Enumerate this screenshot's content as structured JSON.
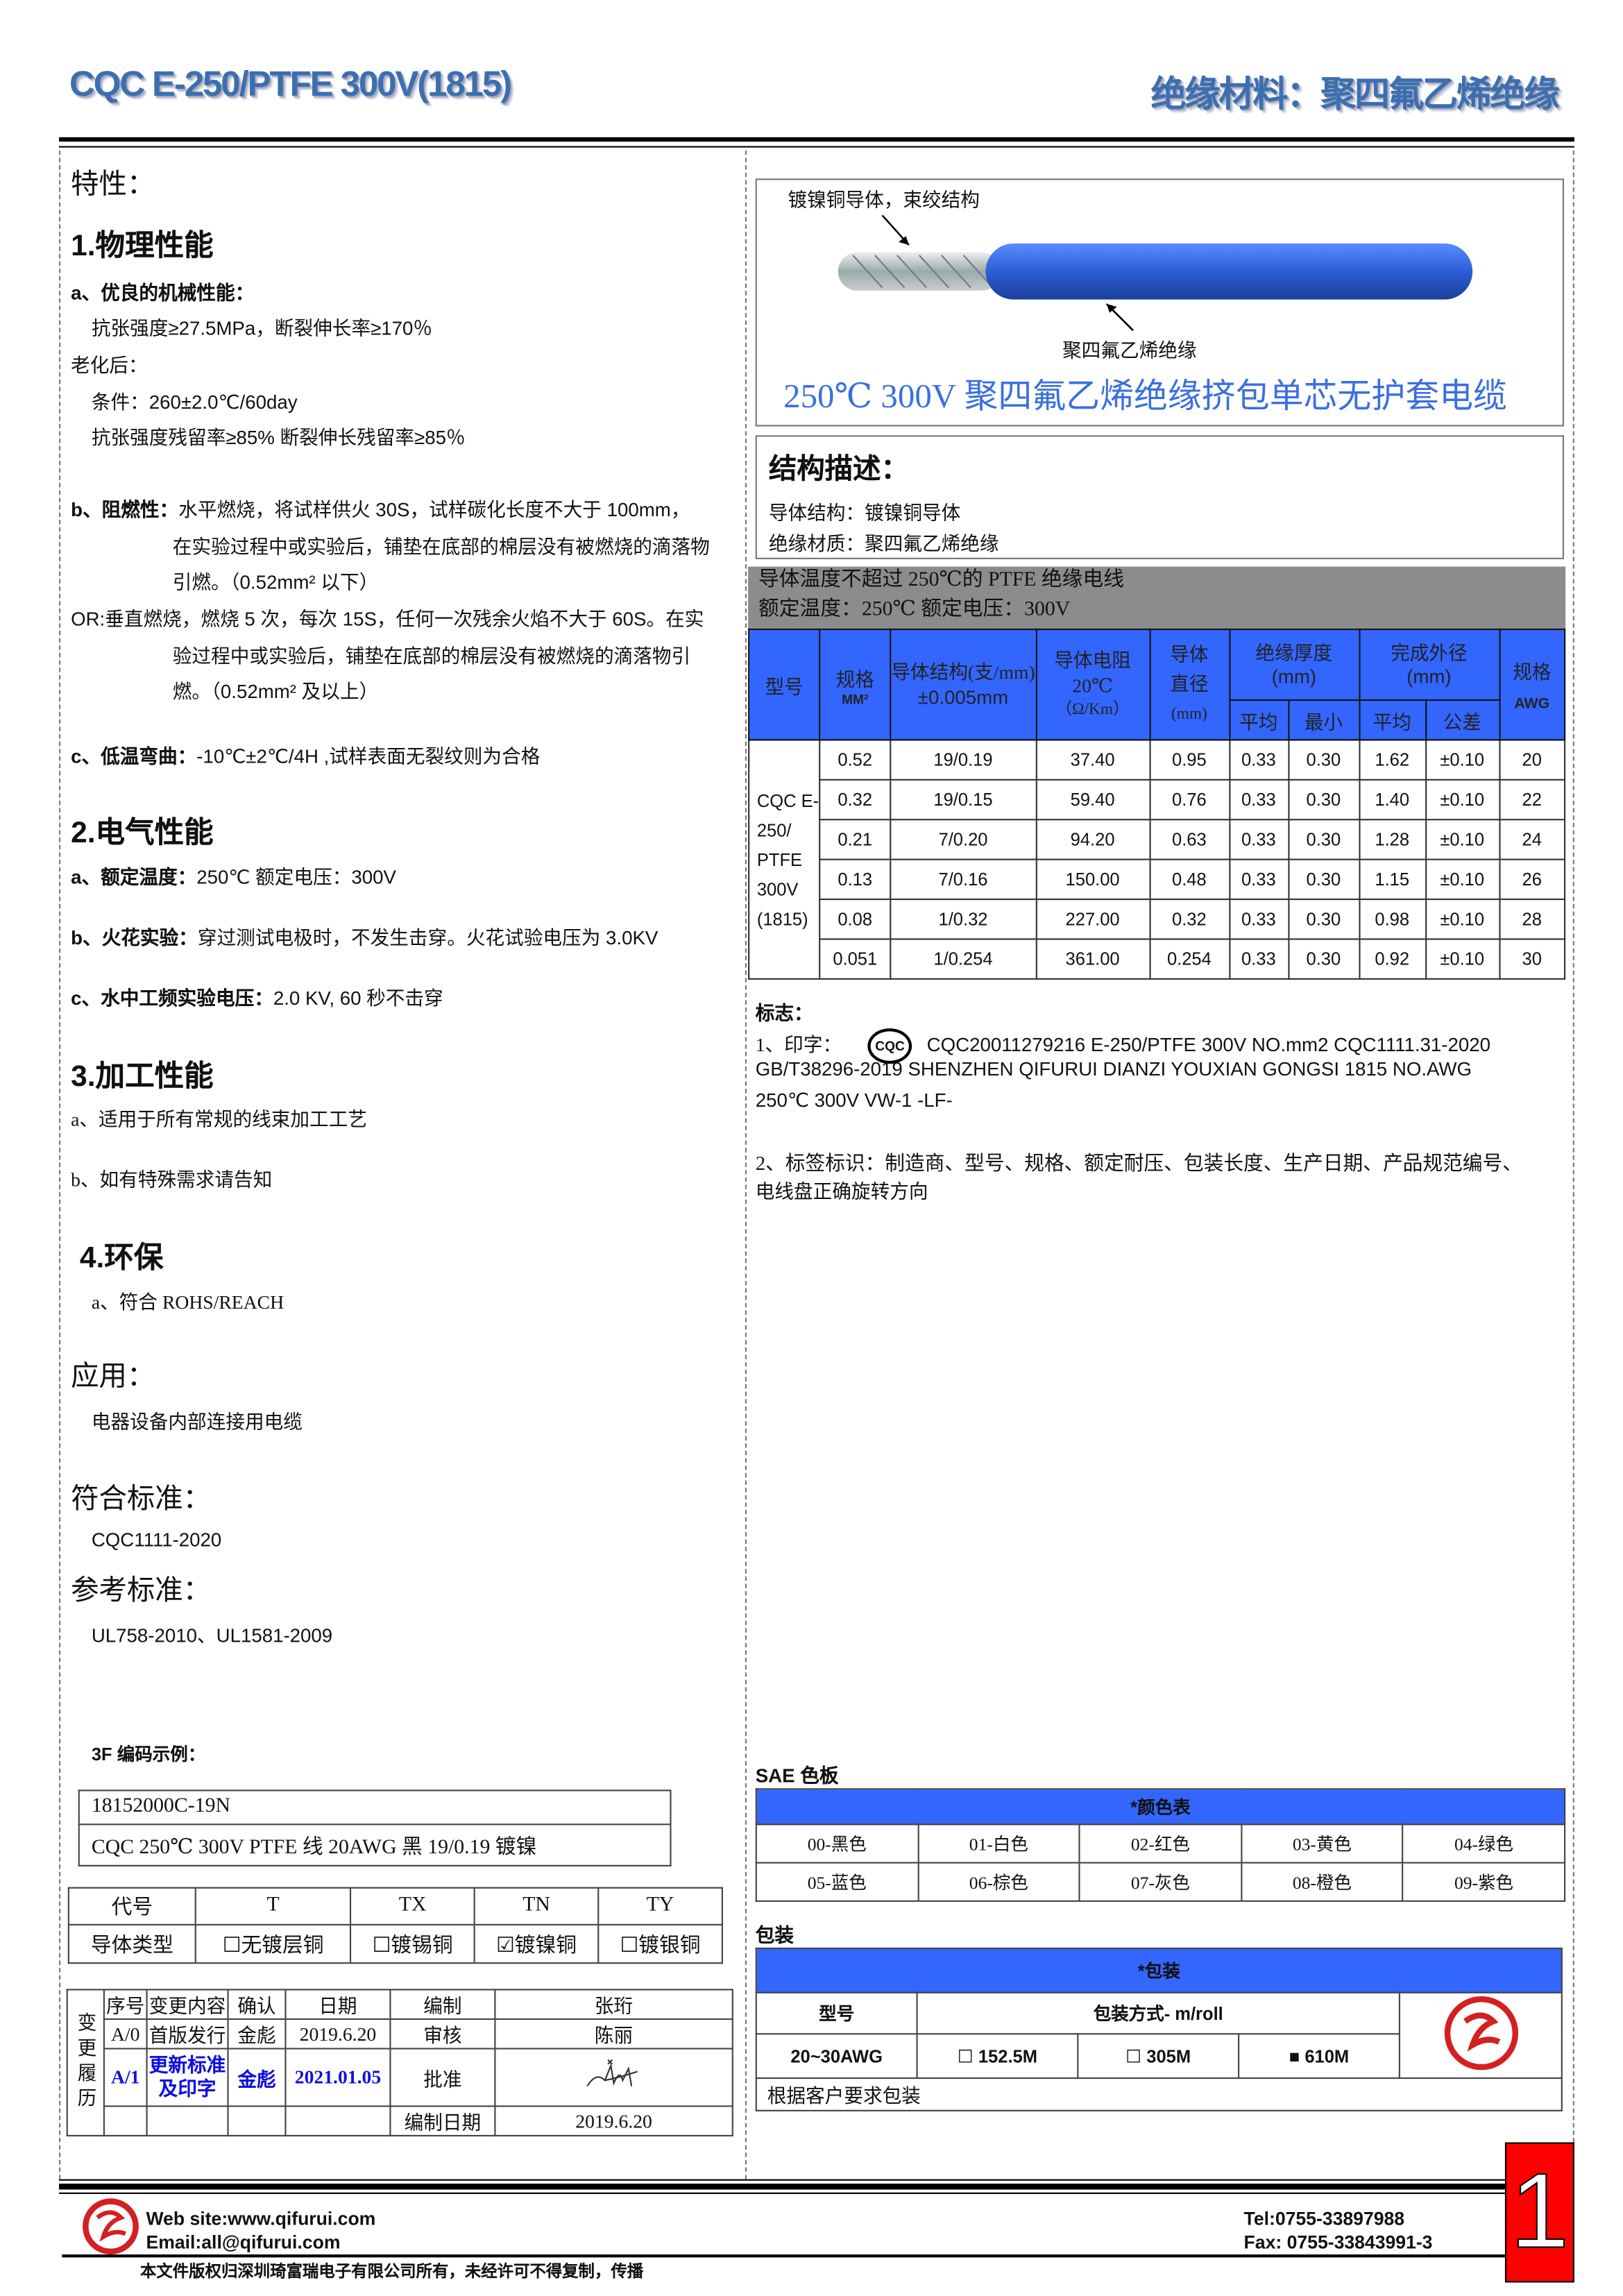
{
  "header": {
    "title_left": "CQC E-250/PTFE 300V(1815)",
    "title_right": "绝缘材料：聚四氟乙烯绝缘"
  },
  "left": {
    "features_title": "特性：",
    "physical": {
      "title": "1.物理性能",
      "a_title": "a、优良的机械性能：",
      "a1": "抗张强度≥27.5MPa，断裂伸长率≥170％",
      "aging": "老化后：",
      "cond": "条件：260±2.0℃/60day",
      "retain": "抗张强度残留率≥85%  断裂伸长残留率≥85％",
      "b_label": "b、阻燃性：",
      "b1": "水平燃烧，将试样供火 30S，试样碳化长度不大于 100mm，",
      "b2": "在实验过程中或实验后，铺垫在底部的棉层没有被燃烧的滴落物",
      "b3": "引燃。（0.52mm² 以下）",
      "or1": "OR:垂直燃烧，燃烧 5 次，每次 15S，任何一次残余火焰不大于 60S。在实",
      "or2": "验过程中或实验后，铺垫在底部的棉层没有被燃烧的滴落物引",
      "or3": "燃。（0.52mm² 及以上）",
      "c_label": "c、低温弯曲：",
      "c1": "-10℃±2℃/4H ,试样表面无裂纹则为合格"
    },
    "electrical": {
      "title": "2.电气性能",
      "a_label": "a、额定温度：",
      "a1": "250℃    额定电压：300V",
      "b_label": "b、火花实验：",
      "b1": "穿过测试电极时，不发生击穿。火花试验电压为 3.0KV",
      "c_label": "c、水中工频实验电压：",
      "c1": "2.0 KV, 60 秒不击穿"
    },
    "processing": {
      "title": "3.加工性能",
      "a": "a、适用于所有常规的线束加工工艺",
      "b": "b、如有特殊需求请告知"
    },
    "env": {
      "title": "4.环保",
      "a": "a、符合 ROHS/REACH"
    },
    "application": {
      "title": "应用：",
      "text": "电器设备内部连接用电缆"
    },
    "standard": {
      "title": "符合标准：",
      "text": "CQC1111-2020"
    },
    "reference": {
      "title": "参考标准：",
      "text": "UL758-2010、UL1581-2009"
    },
    "code_example": {
      "title": "3F 编码示例：",
      "line1": "18152000C-19N",
      "line2": "CQC 250℃  300V PTFE 线  20AWG  黑  19/0.19 镀镍"
    },
    "code_table": {
      "row1": [
        "代号",
        "T",
        "TX",
        "TN",
        "TY"
      ],
      "row2_label": "导体类型",
      "options": [
        {
          "label": "无镀层铜",
          "checked": false
        },
        {
          "label": "镀锡铜",
          "checked": false
        },
        {
          "label": "镀镍铜",
          "checked": true
        },
        {
          "label": "镀银铜",
          "checked": false
        }
      ]
    },
    "history": {
      "side_label": "变更履历",
      "headers": [
        "序号",
        "变更内容",
        "确认",
        "日期",
        "编制",
        "张珩"
      ],
      "row1": [
        "A/0",
        "首版发行",
        "金彪",
        "2019.6.20",
        "审核",
        "陈丽"
      ],
      "row2": [
        "A/1",
        "更新标准及印字",
        "金彪",
        "2021.01.05",
        "批准"
      ],
      "row3": [
        "编制日期",
        "2019.6.20"
      ],
      "signature": "签名"
    }
  },
  "right": {
    "cable": {
      "label_conductor": "镀镍铜导体，束绞结构",
      "label_insulation": "聚四氟乙烯绝缘",
      "title": "250℃  300V 聚四氟乙烯绝缘挤包单芯无护套电缆",
      "color": "#2c5fd6"
    },
    "structure": {
      "title": "结构描述：",
      "conductor": "导体结构：镀镍铜导体",
      "insulation": "绝缘材质：聚四氟乙烯绝缘"
    },
    "band": {
      "line1": "导体温度不超过 250℃的 PTFE 绝缘电线",
      "line2": "额定温度：250℃  额定电压：300V"
    },
    "spec_table": {
      "headers": {
        "model": "型号",
        "size": "规格",
        "size_unit": "MM²",
        "cond": "导体结构(支/mm)",
        "cond_tol": "±0.005mm",
        "res": "导体电阻",
        "res_temp": "20℃",
        "res_unit": "（Ω/Km）",
        "dia": "导体直径",
        "dia_unit": "(mm)",
        "ins": "绝缘厚度",
        "ins_unit": "(mm)",
        "od": "完成外径",
        "od_unit": "(mm)",
        "awg_h": "规格",
        "awg_unit": "AWG",
        "avg": "平均",
        "min": "最小",
        "avg2": "平均",
        "tol": "公差"
      },
      "model": "CQC E-250/ PTFE 300V (1815)",
      "rows": [
        [
          "0.52",
          "19/0.19",
          "37.40",
          "0.95",
          "0.33",
          "0.30",
          "1.62",
          "±0.10",
          "20"
        ],
        [
          "0.32",
          "19/0.15",
          "59.40",
          "0.76",
          "0.33",
          "0.30",
          "1.40",
          "±0.10",
          "22"
        ],
        [
          "0.21",
          "7/0.20",
          "94.20",
          "0.63",
          "0.33",
          "0.30",
          "1.28",
          "±0.10",
          "24"
        ],
        [
          "0.13",
          "7/0.16",
          "150.00",
          "0.48",
          "0.33",
          "0.30",
          "1.15",
          "±0.10",
          "26"
        ],
        [
          "0.08",
          "1/0.32",
          "227.00",
          "0.32",
          "0.33",
          "0.30",
          "0.98",
          "±0.10",
          "28"
        ],
        [
          "0.051",
          "1/0.254",
          "361.00",
          "0.254",
          "0.33",
          "0.30",
          "0.92",
          "±0.10",
          "30"
        ]
      ]
    },
    "marking": {
      "title": "标志：",
      "p1_label": "1、印字：",
      "logo": "CQC",
      "p1a": "CQC20011279216  E-250/PTFE  300V  NO.mm2  CQC1111.31-2020",
      "p1b": "GB/T38296-2019 SHENZHEN QIFURUI DIANZI YOUXIAN GONGSI      1815 NO.AWG",
      "p1c": "250℃  300V VW-1 -LF-",
      "p2a": "2、标签标识：制造商、型号、规格、额定耐压、包装长度、生产日期、产品规范编号、",
      "p2b": "电线盘正确旋转方向"
    },
    "sae": {
      "title": "SAE 色板",
      "header": "*颜色表",
      "colors": [
        "00-黑色",
        "01-白色",
        "02-红色",
        "03-黄色",
        "04-绿色",
        "05-蓝色",
        "06-棕色",
        "07-灰色",
        "08-橙色",
        "09-紫色"
      ]
    },
    "packing": {
      "title": "包装",
      "header": "*包装",
      "col_model": "型号",
      "col_method": "包装方式- m/roll",
      "model": "20~30AWG",
      "options": [
        {
          "label": "152.5M",
          "checked": false
        },
        {
          "label": "305M",
          "checked": false
        },
        {
          "label": "610M",
          "checked": true
        }
      ],
      "note": "根据客户要求包装"
    }
  },
  "footer": {
    "web": "Web site:www.qifurui.com",
    "email": "Email:all@qifurui.com",
    "tel": "Tel:0755-33897988",
    "fax": "Fax: 0755-33843991-3",
    "copyright": "本文件版权归深圳琦富瑞电子有限公司所有，未经许可不得复制，传播",
    "page": "1"
  },
  "colors": {
    "accent_blue": "#3366ff",
    "band_gray": "#8c8c8c",
    "page_red": "#ff0000",
    "brand_red": "#d42020"
  }
}
